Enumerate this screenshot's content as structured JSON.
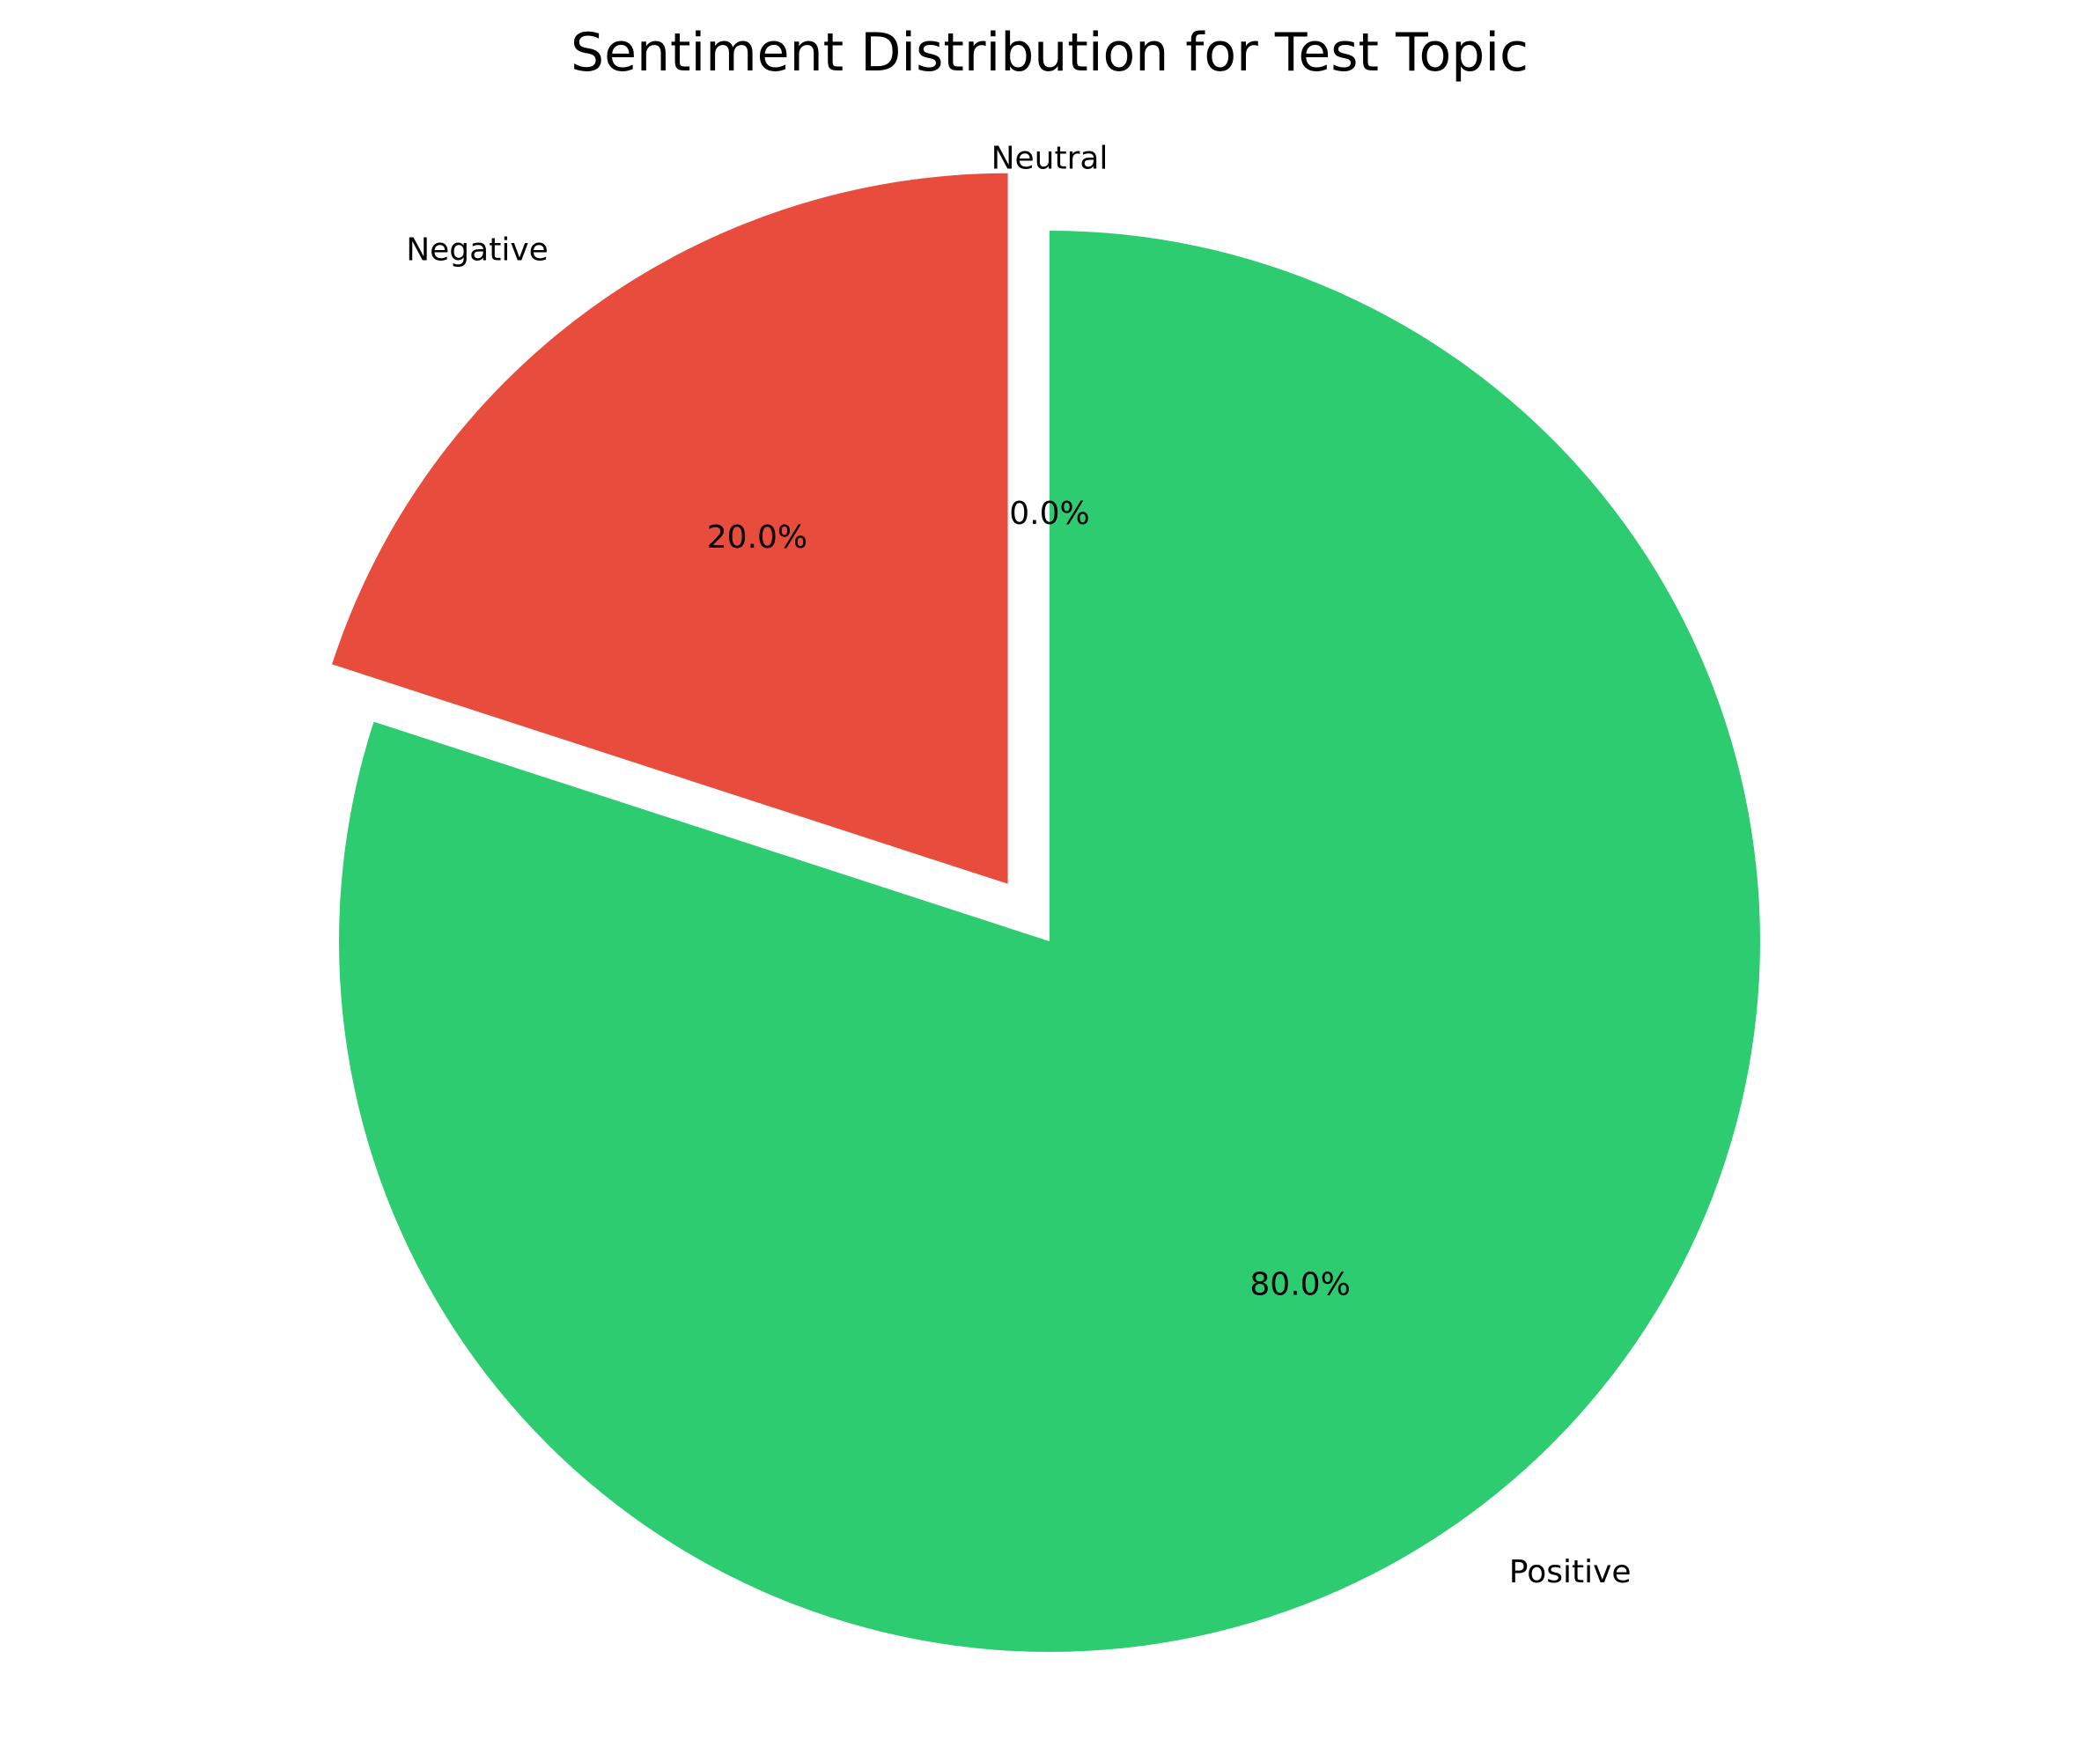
{
  "chart_data": {
    "type": "pie",
    "title": "Sentiment Distribution for Test Topic",
    "slices": [
      {
        "label": "Positive",
        "value": 80.0,
        "pct_label": "80.0%",
        "color": "#2ecc71",
        "exploded": false
      },
      {
        "label": "Negative",
        "value": 20.0,
        "pct_label": "20.0%",
        "color": "#e74c3c",
        "exploded": true
      },
      {
        "label": "Neutral",
        "value": 0.0,
        "pct_label": "0.0%",
        "color": "#95a5a6",
        "exploded": false
      }
    ],
    "start_angle_deg": 90,
    "direction": "clockwise"
  }
}
